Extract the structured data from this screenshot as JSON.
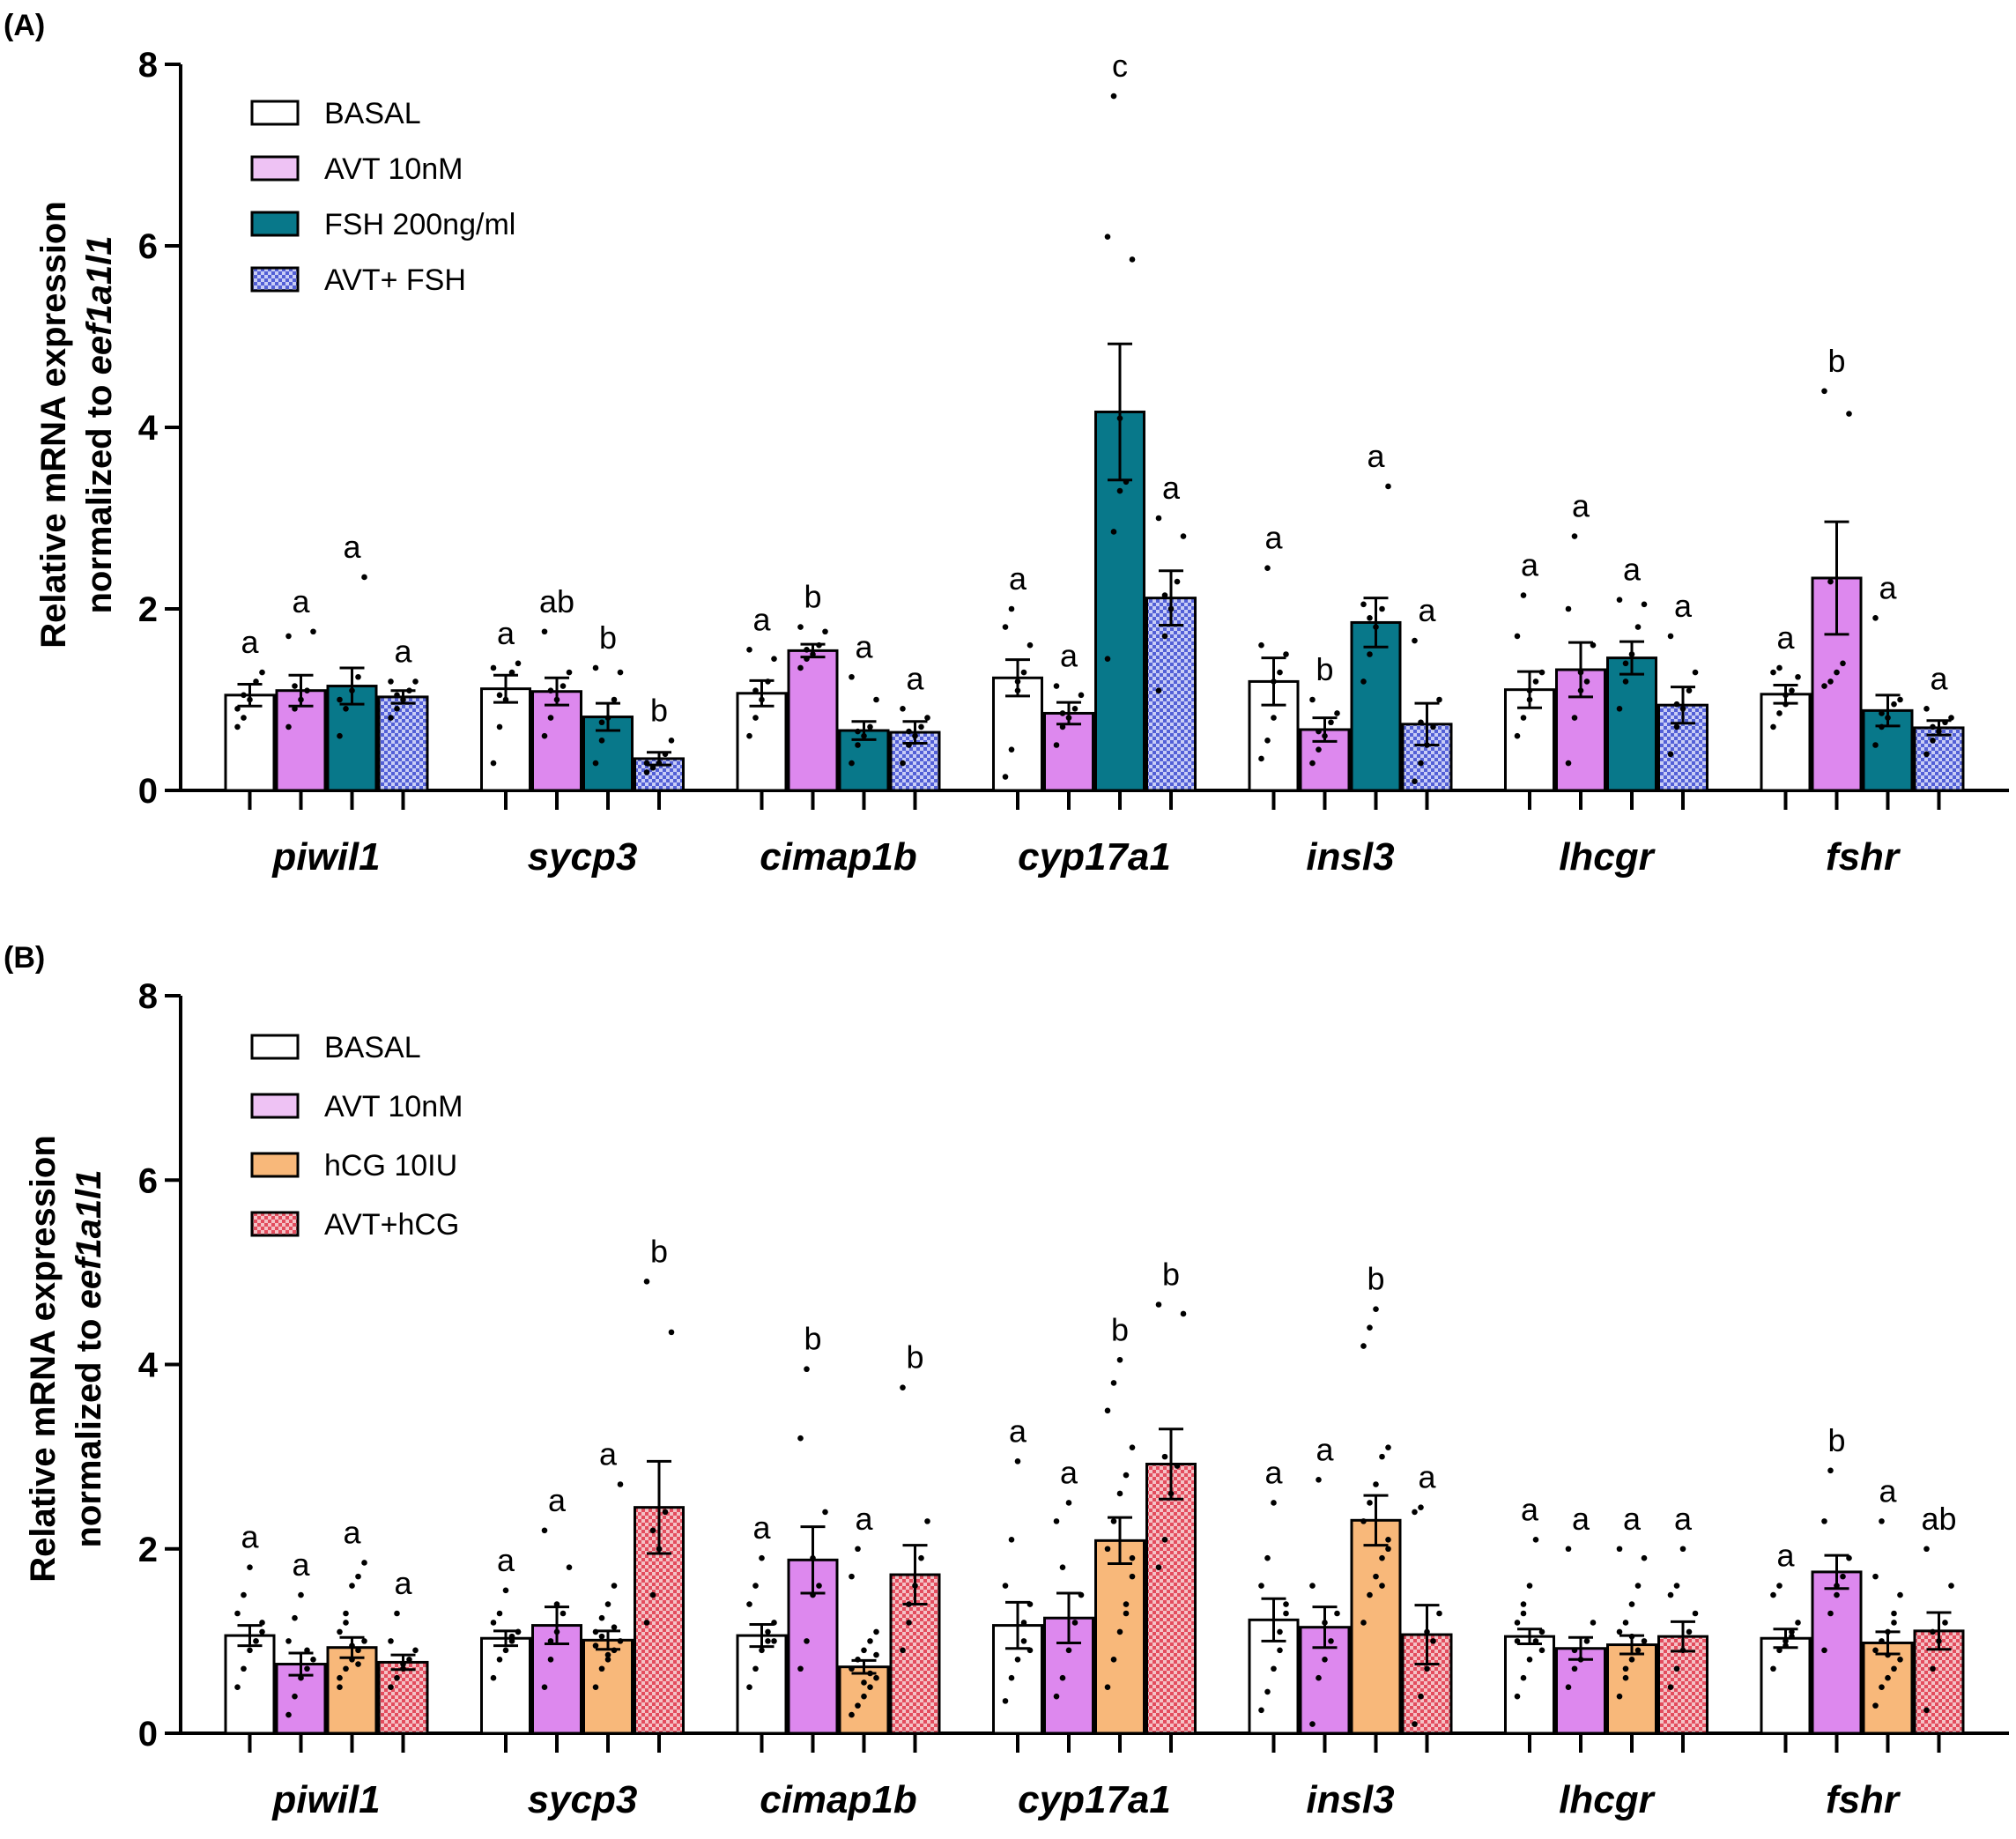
{
  "figure": {
    "panel_labels": [
      "(A)",
      "(B)"
    ]
  },
  "chart_data": [
    {
      "type": "bar",
      "panel": "(A)",
      "ylabel_line1": "Relative mRNA expression",
      "ylabel_line2_prefix": "normalized to ",
      "ylabel_line2_gene": "eef1a1l1",
      "ylim": [
        0,
        8
      ],
      "yticks": [
        "0",
        "2",
        "4",
        "6",
        "8"
      ],
      "categories": [
        "piwil1",
        "sycp3",
        "cimap1b",
        "cyp17a1",
        "insl3",
        "lhcgr",
        "fshr"
      ],
      "series": [
        {
          "name": "BASAL",
          "color": "#ffffff",
          "pattern": "none",
          "values": [
            1.05,
            1.12,
            1.07,
            1.24,
            1.2,
            1.11,
            1.06
          ],
          "sem": [
            0.12,
            0.15,
            0.14,
            0.2,
            0.26,
            0.2,
            0.1
          ],
          "letters": [
            "a",
            "a",
            "a",
            "a",
            "a",
            "a",
            "a"
          ],
          "points": [
            [
              0.7,
              0.8,
              1.0,
              1.2,
              1.3,
              0.9,
              1.05
            ],
            [
              0.3,
              0.7,
              1.0,
              1.3,
              1.4,
              1.35,
              1.05
            ],
            [
              0.6,
              0.8,
              1.0,
              1.2,
              1.45,
              1.55,
              1.1
            ],
            [
              0.15,
              0.45,
              1.1,
              1.3,
              1.6,
              1.8,
              2.0,
              1.2
            ],
            [
              0.35,
              0.55,
              0.8,
              1.3,
              1.5,
              1.6,
              2.45,
              1.2
            ],
            [
              0.6,
              0.8,
              1.0,
              1.2,
              1.3,
              1.7,
              2.15,
              1.1
            ],
            [
              0.7,
              0.85,
              0.95,
              1.1,
              1.25,
              1.3,
              1.35,
              1.05
            ]
          ]
        },
        {
          "name": "AVT 10nM",
          "color": "#dd88ee",
          "pattern": "none",
          "values": [
            1.1,
            1.09,
            1.54,
            0.85,
            0.67,
            1.33,
            2.34
          ],
          "sem": [
            0.17,
            0.15,
            0.07,
            0.12,
            0.13,
            0.3,
            0.62
          ],
          "letters": [
            "a",
            "ab",
            "b",
            "a",
            "b",
            "a",
            "b"
          ],
          "points": [
            [
              0.7,
              0.9,
              1.0,
              1.1,
              1.75,
              1.7,
              1.15
            ],
            [
              0.6,
              0.8,
              1.0,
              1.15,
              1.3,
              1.75,
              1.1
            ],
            [
              1.35,
              1.45,
              1.5,
              1.6,
              1.75,
              1.8,
              1.55
            ],
            [
              0.5,
              0.7,
              0.8,
              0.9,
              1.05,
              1.15,
              0.85
            ],
            [
              0.3,
              0.45,
              0.6,
              0.75,
              0.85,
              1.0,
              0.65
            ],
            [
              0.3,
              0.8,
              1.1,
              1.2,
              1.6,
              2.0,
              2.8,
              1.3
            ],
            [
              1.15,
              1.2,
              1.3,
              1.4,
              4.15,
              4.4,
              2.3
            ]
          ]
        },
        {
          "name": "FSH 200ng/ml",
          "color": "#08788a",
          "pattern": "none",
          "values": [
            1.15,
            0.81,
            0.66,
            4.17,
            1.85,
            1.46,
            0.88
          ],
          "sem": [
            0.2,
            0.15,
            0.1,
            0.75,
            0.27,
            0.18,
            0.17
          ],
          "letters": [
            "a",
            "b",
            "a",
            "c",
            "a",
            "a",
            "a"
          ],
          "points": [
            [
              0.6,
              0.9,
              1.1,
              1.25,
              2.35,
              1.0
            ],
            [
              0.3,
              0.55,
              0.8,
              1.0,
              1.3,
              1.35,
              0.75
            ],
            [
              0.3,
              0.5,
              0.6,
              0.7,
              1.0,
              1.25,
              0.65
            ],
            [
              1.45,
              2.85,
              3.3,
              3.4,
              5.85,
              6.1,
              7.65,
              4.1
            ],
            [
              1.2,
              1.5,
              1.8,
              2.0,
              3.35,
              2.05,
              1.9
            ],
            [
              0.9,
              1.2,
              1.5,
              1.8,
              2.05,
              2.1,
              1.4
            ],
            [
              0.5,
              0.7,
              0.8,
              0.95,
              1.0,
              1.9,
              0.85
            ]
          ]
        },
        {
          "name": "AVT+ FSH",
          "color": "#6b76e0",
          "pattern": "check",
          "values": [
            1.03,
            0.35,
            0.64,
            2.12,
            0.73,
            0.94,
            0.69
          ],
          "sem": [
            0.07,
            0.07,
            0.12,
            0.3,
            0.23,
            0.2,
            0.08
          ],
          "letters": [
            "a",
            "b",
            "a",
            "a",
            "a",
            "a",
            "a"
          ],
          "points": [
            [
              0.8,
              0.9,
              1.0,
              1.1,
              1.2,
              1.2,
              1.05
            ],
            [
              0.2,
              0.25,
              0.3,
              0.4,
              0.55,
              0.3
            ],
            [
              0.3,
              0.5,
              0.6,
              0.7,
              0.8,
              0.9,
              0.65
            ],
            [
              1.1,
              1.7,
              2.0,
              2.3,
              2.8,
              3.0,
              2.15
            ],
            [
              0.1,
              0.3,
              0.5,
              0.7,
              1.0,
              1.65,
              0.75
            ],
            [
              0.4,
              0.7,
              0.9,
              1.1,
              1.3,
              1.7,
              0.95
            ],
            [
              0.4,
              0.55,
              0.65,
              0.75,
              0.8,
              0.9,
              0.7
            ]
          ]
        }
      ]
    },
    {
      "type": "bar",
      "panel": "(B)",
      "ylabel_line1": "Relative mRNA expression",
      "ylabel_line2_prefix": "normalized to ",
      "ylabel_line2_gene": "eef1a1l1",
      "ylim": [
        0,
        8
      ],
      "yticks": [
        "0",
        "2",
        "4",
        "6",
        "8"
      ],
      "categories": [
        "piwil1",
        "sycp3",
        "cimap1b",
        "cyp17a1",
        "insl3",
        "lhcgr",
        "fshr"
      ],
      "series": [
        {
          "name": "BASAL",
          "color": "#ffffff",
          "pattern": "none",
          "values": [
            1.06,
            1.03,
            1.06,
            1.17,
            1.23,
            1.05,
            1.03
          ],
          "sem": [
            0.11,
            0.08,
            0.12,
            0.25,
            0.23,
            0.08,
            0.1
          ],
          "letters": [
            "a",
            "a",
            "a",
            "a",
            "a",
            "a",
            "a"
          ],
          "points": [
            [
              0.5,
              0.7,
              0.9,
              1.0,
              1.1,
              1.3,
              1.5,
              1.8,
              1.0,
              1.2
            ],
            [
              0.6,
              0.8,
              0.9,
              1.0,
              1.1,
              1.2,
              1.3,
              1.55,
              1.05,
              1.1
            ],
            [
              0.5,
              0.7,
              0.9,
              1.0,
              1.2,
              1.4,
              1.6,
              1.9,
              1.1,
              1.0
            ],
            [
              0.35,
              0.6,
              0.8,
              1.0,
              1.4,
              1.6,
              2.1,
              2.95,
              1.2,
              0.9
            ],
            [
              0.25,
              0.45,
              0.7,
              0.9,
              1.3,
              1.6,
              1.9,
              2.5,
              1.1,
              1.4
            ],
            [
              0.4,
              0.6,
              0.8,
              1.0,
              1.1,
              1.2,
              1.4,
              1.6,
              2.1,
              0.9,
              1.0,
              1.3
            ],
            [
              0.7,
              0.9,
              1.0,
              1.1,
              1.2,
              1.5,
              1.6,
              0.95,
              1.05
            ]
          ]
        },
        {
          "name": "AVT 10nM",
          "color": "#dd88ee",
          "pattern": "none",
          "values": [
            0.75,
            1.17,
            1.88,
            1.25,
            1.15,
            0.92,
            1.75
          ],
          "sem": [
            0.12,
            0.2,
            0.36,
            0.27,
            0.22,
            0.12,
            0.18
          ],
          "letters": [
            "a",
            "a",
            "b",
            "a",
            "a",
            "a",
            "b"
          ],
          "points": [
            [
              0.2,
              0.4,
              0.6,
              0.7,
              0.8,
              1.0,
              1.25,
              1.5,
              0.9
            ],
            [
              0.5,
              0.8,
              1.1,
              1.3,
              1.8,
              2.2,
              1.0,
              1.4
            ],
            [
              0.7,
              1.0,
              1.5,
              1.6,
              2.4,
              3.2,
              3.95,
              1.9
            ],
            [
              0.4,
              0.6,
              0.9,
              1.2,
              1.5,
              2.3,
              1.8,
              2.5
            ],
            [
              0.1,
              0.6,
              0.8,
              1.0,
              1.3,
              1.6,
              2.75,
              1.2
            ],
            [
              0.5,
              0.7,
              0.8,
              1.0,
              1.2,
              2.0,
              0.9
            ],
            [
              0.9,
              1.3,
              1.5,
              1.7,
              1.9,
              2.3,
              2.85,
              1.6
            ]
          ]
        },
        {
          "name": "hCG 10IU",
          "color": "#f8b87a",
          "pattern": "none",
          "values": [
            0.93,
            1.01,
            0.72,
            2.09,
            2.31,
            0.96,
            0.98
          ],
          "sem": [
            0.11,
            0.1,
            0.07,
            0.25,
            0.27,
            0.1,
            0.12
          ],
          "letters": [
            "a",
            "a",
            "a",
            "b",
            "b",
            "a",
            "a"
          ],
          "points": [
            [
              0.5,
              0.7,
              0.8,
              0.9,
              1.0,
              1.1,
              1.3,
              1.6,
              1.7,
              1.85,
              0.6,
              1.2,
              0.95,
              0.75
            ],
            [
              0.5,
              0.7,
              0.8,
              0.9,
              1.0,
              1.1,
              1.25,
              1.4,
              1.6,
              2.7,
              0.95,
              1.05,
              0.85,
              1.15
            ],
            [
              0.2,
              0.3,
              0.4,
              0.5,
              0.6,
              0.7,
              0.8,
              0.9,
              1.0,
              1.1,
              1.7,
              2.0,
              0.55,
              0.65,
              0.85
            ],
            [
              0.5,
              0.8,
              1.1,
              1.4,
              1.7,
              2.0,
              2.3,
              2.6,
              2.8,
              3.1,
              3.5,
              3.8,
              4.05,
              1.3,
              1.9
            ],
            [
              1.2,
              1.5,
              1.7,
              1.9,
              2.1,
              2.3,
              2.5,
              2.7,
              3.0,
              3.1,
              4.2,
              4.4,
              4.6,
              1.6,
              2.0
            ],
            [
              0.4,
              0.6,
              0.8,
              0.9,
              1.0,
              1.1,
              1.2,
              1.4,
              1.6,
              1.9,
              2.0,
              0.7,
              1.05
            ],
            [
              0.3,
              0.5,
              0.6,
              0.7,
              0.8,
              0.9,
              1.0,
              1.1,
              1.3,
              1.5,
              1.7,
              2.3,
              0.85,
              1.2
            ]
          ]
        },
        {
          "name": "AVT+hCG",
          "color": "#e8707e",
          "pattern": "check",
          "values": [
            0.77,
            2.45,
            1.72,
            2.92,
            1.07,
            1.05,
            1.11
          ],
          "sem": [
            0.08,
            0.5,
            0.32,
            0.38,
            0.32,
            0.16,
            0.2
          ],
          "letters": [
            "a",
            "b",
            "b",
            "b",
            "a",
            "a",
            "ab"
          ],
          "points": [
            [
              0.5,
              0.6,
              0.7,
              0.8,
              0.9,
              1.0,
              1.3,
              0.75
            ],
            [
              1.2,
              1.5,
              2.0,
              2.4,
              4.35,
              4.9,
              2.2
            ],
            [
              0.9,
              1.2,
              1.6,
              1.9,
              2.3,
              3.75,
              1.4
            ],
            [
              1.8,
              2.1,
              2.6,
              2.9,
              4.55,
              4.65,
              3.0
            ],
            [
              0.1,
              0.4,
              0.7,
              1.0,
              1.3,
              2.4,
              2.45,
              1.1
            ],
            [
              0.5,
              0.7,
              0.9,
              1.1,
              1.3,
              1.5,
              1.6,
              2.0
            ],
            [
              0.25,
              0.7,
              1.0,
              1.2,
              1.6,
              2.0,
              1.1
            ]
          ]
        }
      ]
    }
  ]
}
